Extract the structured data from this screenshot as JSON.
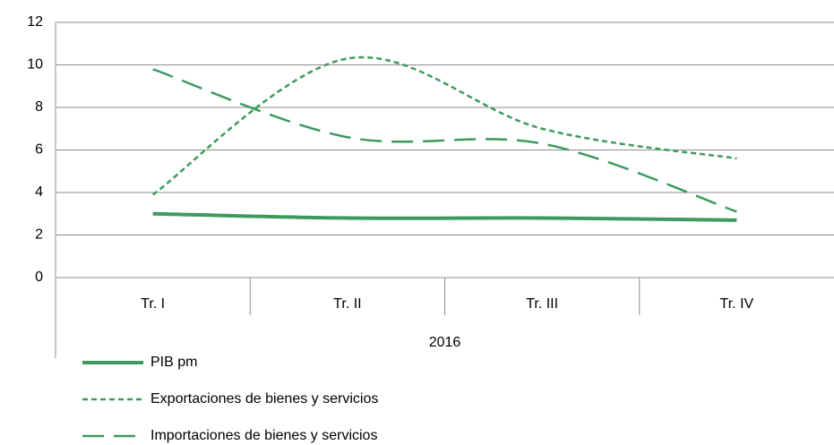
{
  "chart_data": {
    "type": "line",
    "categories": [
      "Tr. I",
      "Tr. II",
      "Tr. III",
      "Tr. IV"
    ],
    "x_group_label": "2016",
    "series": [
      {
        "name": "PIB pm",
        "color": "#3d9a5e",
        "line_style": "solid",
        "values": [
          3.0,
          2.8,
          2.8,
          2.7
        ]
      },
      {
        "name": "Exportaciones de bienes y servicios",
        "color": "#3d9a5e",
        "line_style": "short-dash",
        "values": [
          3.9,
          10.3,
          7.0,
          5.6
        ]
      },
      {
        "name": "Importaciones de bienes y servicios",
        "color": "#3d9a5e",
        "line_style": "long-dash",
        "values": [
          9.8,
          6.6,
          6.3,
          3.1
        ]
      }
    ],
    "ylim": [
      0,
      12
    ],
    "yticks": [
      0,
      2,
      4,
      6,
      8,
      10,
      12
    ],
    "grid": true,
    "smooth": true,
    "legend": "bottom-left"
  }
}
